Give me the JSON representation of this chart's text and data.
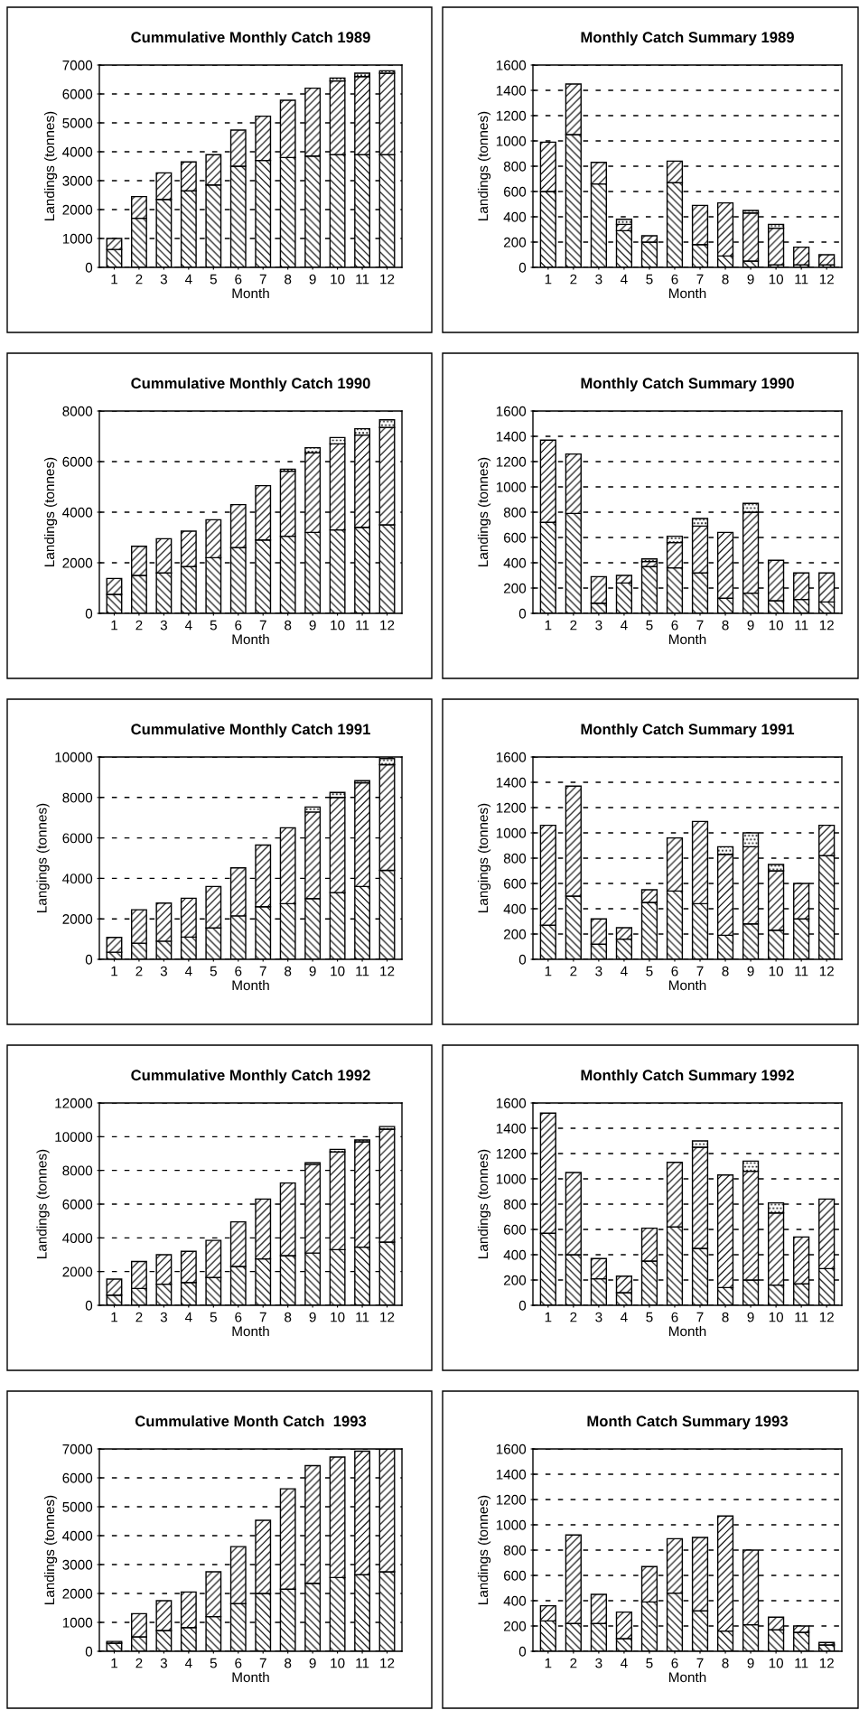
{
  "chart_data": [
    {
      "type": "bar",
      "stacked": true,
      "title": "Cummulative Monthly Catch 1989",
      "xlabel": "Month",
      "ylabel": "Landings (tonnes)",
      "categories": [
        "1",
        "2",
        "3",
        "4",
        "5",
        "6",
        "7",
        "8",
        "9",
        "10",
        "11",
        "12"
      ],
      "ylim": [
        0,
        7000
      ],
      "yticks": [
        0,
        1000,
        2000,
        3000,
        4000,
        5000,
        6000,
        7000
      ],
      "grid": "y",
      "legend": false,
      "series": [
        {
          "color": "#000000",
          "values": [
            620,
            1700,
            2350,
            2650,
            2850,
            3500,
            3700,
            3800,
            3850,
            3900,
            3900,
            3900
          ]
        },
        {
          "color": "#000000",
          "values": [
            380,
            750,
            920,
            1000,
            1050,
            1250,
            1530,
            1980,
            2350,
            2550,
            2700,
            2820
          ]
        },
        {
          "color": "#000000",
          "values": [
            null,
            null,
            null,
            null,
            null,
            null,
            null,
            null,
            null,
            100,
            120,
            80
          ]
        }
      ]
    },
    {
      "type": "bar",
      "stacked": true,
      "title": "Monthly Catch Summary 1989",
      "xlabel": "Month",
      "ylabel": "Landings (tonnes)",
      "categories": [
        "1",
        "2",
        "3",
        "4",
        "5",
        "6",
        "7",
        "8",
        "9",
        "10",
        "11",
        "12"
      ],
      "ylim": [
        0,
        1600
      ],
      "yticks": [
        0,
        200,
        400,
        600,
        800,
        1000,
        1200,
        1400,
        1600
      ],
      "grid": "y",
      "legend": false,
      "series": [
        {
          "color": "#000000",
          "values": [
            600,
            1050,
            660,
            290,
            200,
            670,
            180,
            90,
            50,
            20,
            20,
            20
          ]
        },
        {
          "color": "#000000",
          "values": [
            390,
            400,
            170,
            50,
            50,
            170,
            310,
            420,
            380,
            290,
            140,
            80
          ]
        },
        {
          "color": "#000000",
          "values": [
            null,
            null,
            null,
            40,
            null,
            null,
            null,
            null,
            20,
            30,
            null,
            null
          ]
        }
      ]
    },
    {
      "type": "bar",
      "stacked": true,
      "title": "Cummulative Monthly Catch 1990",
      "xlabel": "Month",
      "ylabel": "Landings (tonnes)",
      "categories": [
        "1",
        "2",
        "3",
        "4",
        "5",
        "6",
        "7",
        "8",
        "9",
        "10",
        "11",
        "12"
      ],
      "ylim": [
        0,
        8000
      ],
      "yticks": [
        0,
        2000,
        4000,
        6000,
        8000
      ],
      "grid": "y",
      "legend": false,
      "series": [
        {
          "color": "#000000",
          "values": [
            750,
            1500,
            1600,
            1850,
            2200,
            2600,
            2900,
            3050,
            3200,
            3300,
            3400,
            3500
          ]
        },
        {
          "color": "#000000",
          "values": [
            630,
            1150,
            1350,
            1400,
            1500,
            1700,
            2150,
            2570,
            3150,
            3400,
            3650,
            3850
          ]
        },
        {
          "color": "#000000",
          "values": [
            null,
            null,
            null,
            null,
            null,
            null,
            null,
            80,
            200,
            250,
            250,
            300
          ]
        }
      ]
    },
    {
      "type": "bar",
      "stacked": true,
      "title": "Monthly Catch Summary 1990",
      "xlabel": "Month",
      "ylabel": "Landings (tonnes)",
      "categories": [
        "1",
        "2",
        "3",
        "4",
        "5",
        "6",
        "7",
        "8",
        "9",
        "10",
        "11",
        "12"
      ],
      "ylim": [
        0,
        1600
      ],
      "yticks": [
        0,
        200,
        400,
        600,
        800,
        1000,
        1200,
        1400,
        1600
      ],
      "grid": "y",
      "legend": false,
      "series": [
        {
          "color": "#000000",
          "values": [
            720,
            790,
            80,
            240,
            370,
            360,
            320,
            120,
            160,
            100,
            110,
            90
          ]
        },
        {
          "color": "#000000",
          "values": [
            650,
            470,
            210,
            60,
            40,
            200,
            370,
            520,
            640,
            320,
            210,
            230
          ]
        },
        {
          "color": "#000000",
          "values": [
            null,
            null,
            null,
            null,
            20,
            50,
            60,
            null,
            70,
            null,
            null,
            null
          ]
        }
      ]
    },
    {
      "type": "bar",
      "stacked": true,
      "title": "Cummulative Monthly Catch 1991",
      "xlabel": "Month",
      "ylabel": "Langings (tonnes)",
      "categories": [
        "1",
        "2",
        "3",
        "4",
        "5",
        "6",
        "7",
        "8",
        "9",
        "10",
        "11",
        "12"
      ],
      "ylim": [
        0,
        10000
      ],
      "yticks": [
        0,
        2000,
        4000,
        6000,
        8000,
        10000
      ],
      "grid": "y",
      "legend": false,
      "series": [
        {
          "color": "#000000",
          "values": [
            350,
            800,
            900,
            1100,
            1550,
            2150,
            2600,
            2750,
            3000,
            3300,
            3600,
            4400
          ]
        },
        {
          "color": "#000000",
          "values": [
            730,
            1650,
            1880,
            1920,
            2050,
            2370,
            3050,
            3750,
            4280,
            4700,
            5130,
            5220
          ]
        },
        {
          "color": "#000000",
          "values": [
            null,
            null,
            null,
            null,
            null,
            null,
            null,
            null,
            250,
            250,
            100,
            300
          ]
        }
      ]
    },
    {
      "type": "bar",
      "stacked": true,
      "title": "Monthly Catch Summary 1991",
      "xlabel": "Month",
      "ylabel": "Langings (tonnes)",
      "categories": [
        "1",
        "2",
        "3",
        "4",
        "5",
        "6",
        "7",
        "8",
        "9",
        "10",
        "11",
        "12"
      ],
      "ylim": [
        0,
        1600
      ],
      "yticks": [
        0,
        200,
        400,
        600,
        800,
        1000,
        1200,
        1400,
        1600
      ],
      "grid": "y",
      "legend": false,
      "series": [
        {
          "color": "#000000",
          "values": [
            270,
            500,
            120,
            160,
            450,
            540,
            440,
            190,
            280,
            230,
            320,
            820
          ]
        },
        {
          "color": "#000000",
          "values": [
            790,
            870,
            200,
            90,
            100,
            420,
            650,
            640,
            610,
            470,
            280,
            240
          ]
        },
        {
          "color": "#000000",
          "values": [
            null,
            null,
            null,
            null,
            null,
            null,
            null,
            60,
            110,
            50,
            null,
            null
          ]
        }
      ]
    },
    {
      "type": "bar",
      "stacked": true,
      "title": "Cummulative Monthly Catch 1992",
      "xlabel": "Month",
      "ylabel": "Landings (tonnes)",
      "categories": [
        "1",
        "2",
        "3",
        "4",
        "5",
        "6",
        "7",
        "8",
        "9",
        "10",
        "11",
        "12"
      ],
      "ylim": [
        0,
        12000
      ],
      "yticks": [
        0,
        2000,
        4000,
        6000,
        8000,
        10000,
        12000
      ],
      "grid": "y",
      "legend": false,
      "series": [
        {
          "color": "#000000",
          "values": [
            600,
            1000,
            1250,
            1350,
            1650,
            2300,
            2750,
            2950,
            3100,
            3300,
            3450,
            3750
          ]
        },
        {
          "color": "#000000",
          "values": [
            950,
            1600,
            1750,
            1850,
            2200,
            2650,
            3550,
            4300,
            5250,
            5800,
            6250,
            6700
          ]
        },
        {
          "color": "#000000",
          "values": [
            null,
            null,
            null,
            null,
            null,
            null,
            null,
            null,
            100,
            150,
            100,
            150
          ]
        }
      ]
    },
    {
      "type": "bar",
      "stacked": true,
      "title": "Monthly Catch Summary 1992",
      "xlabel": "Month",
      "ylabel": "Landings (tonnes)",
      "categories": [
        "1",
        "2",
        "3",
        "4",
        "5",
        "6",
        "7",
        "8",
        "9",
        "10",
        "11",
        "12"
      ],
      "ylim": [
        0,
        1600
      ],
      "yticks": [
        0,
        200,
        400,
        600,
        800,
        1000,
        1200,
        1400,
        1600
      ],
      "grid": "y",
      "legend": false,
      "series": [
        {
          "color": "#000000",
          "values": [
            570,
            400,
            210,
            100,
            350,
            620,
            450,
            140,
            200,
            160,
            170,
            290
          ]
        },
        {
          "color": "#000000",
          "values": [
            950,
            650,
            160,
            130,
            260,
            510,
            800,
            890,
            860,
            570,
            370,
            550
          ]
        },
        {
          "color": "#000000",
          "values": [
            null,
            null,
            null,
            null,
            null,
            null,
            50,
            null,
            80,
            80,
            null,
            null
          ]
        }
      ]
    },
    {
      "type": "bar",
      "stacked": true,
      "title": "Cummulative Month Catch  1993",
      "xlabel": "Month",
      "ylabel": "Landings (tonnes)",
      "categories": [
        "1",
        "2",
        "3",
        "4",
        "5",
        "6",
        "7",
        "8",
        "9",
        "10",
        "11",
        "12"
      ],
      "ylim": [
        0,
        7000
      ],
      "yticks": [
        0,
        1000,
        2000,
        3000,
        4000,
        5000,
        6000,
        7000
      ],
      "grid": "y",
      "legend": false,
      "series": [
        {
          "color": "#000000",
          "values": [
            280,
            500,
            720,
            820,
            1200,
            1650,
            2000,
            2150,
            2350,
            2550,
            2650,
            2750
          ]
        },
        {
          "color": "#000000",
          "values": [
            60,
            800,
            1030,
            1230,
            1550,
            1970,
            2530,
            3470,
            4070,
            4170,
            4270,
            4250
          ]
        }
      ]
    },
    {
      "type": "bar",
      "stacked": true,
      "title": "Month Catch Summary 1993",
      "xlabel": "Month",
      "ylabel": "Landings (tonnes)",
      "categories": [
        "1",
        "2",
        "3",
        "4",
        "5",
        "6",
        "7",
        "8",
        "9",
        "10",
        "11",
        "12"
      ],
      "ylim": [
        0,
        1600
      ],
      "yticks": [
        0,
        200,
        400,
        600,
        800,
        1000,
        1200,
        1400,
        1600
      ],
      "grid": "y",
      "legend": false,
      "series": [
        {
          "color": "#000000",
          "values": [
            240,
            220,
            220,
            100,
            390,
            460,
            320,
            160,
            210,
            170,
            150,
            50
          ]
        },
        {
          "color": "#000000",
          "values": [
            120,
            700,
            230,
            210,
            280,
            430,
            580,
            910,
            590,
            100,
            50,
            20
          ]
        }
      ]
    }
  ]
}
